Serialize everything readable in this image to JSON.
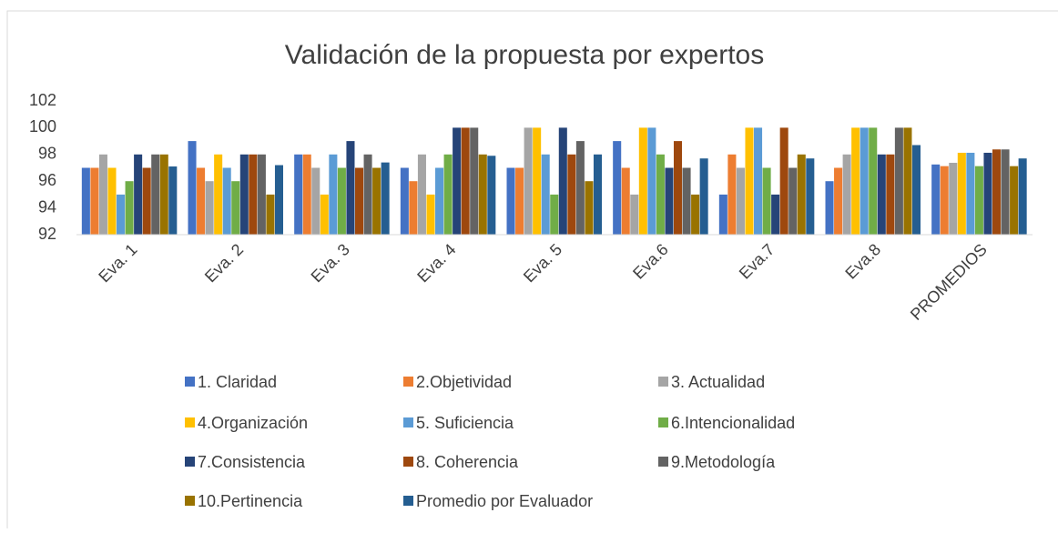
{
  "chart_data": {
    "type": "bar",
    "title": "Validación de la propuesta por expertos",
    "categories": [
      "Eva. 1",
      "Eva. 2",
      "Eva. 3",
      "Eva. 4",
      "Eva. 5",
      "Eva.6",
      "Eva.7",
      "Eva.8",
      "PROMEDIOS"
    ],
    "series": [
      {
        "name": "1. Claridad",
        "color": "#4472c4",
        "values": [
          97,
          99,
          98,
          97,
          97,
          99,
          95,
          96,
          97.25
        ]
      },
      {
        "name": "2.Objetividad",
        "color": "#ed7d31",
        "values": [
          97,
          97,
          98,
          96,
          97,
          97,
          98,
          97,
          97.125
        ]
      },
      {
        "name": "3. Actualidad",
        "color": "#a5a5a5",
        "values": [
          98,
          96,
          97,
          98,
          100,
          95,
          97,
          98,
          97.375
        ]
      },
      {
        "name": "4.Organización",
        "color": "#ffc000",
        "values": [
          97,
          98,
          95,
          95,
          100,
          100,
          100,
          100,
          98.125
        ]
      },
      {
        "name": "5. Suficiencia",
        "color": "#5b9bd5",
        "values": [
          95,
          97,
          98,
          97,
          98,
          100,
          100,
          100,
          98.125
        ]
      },
      {
        "name": "6.Intencionalidad",
        "color": "#70ad47",
        "values": [
          96,
          96,
          97,
          98,
          95,
          98,
          97,
          100,
          97.125
        ]
      },
      {
        "name": "7.Consistencia",
        "color": "#264478",
        "values": [
          98,
          98,
          99,
          100,
          100,
          97,
          95,
          98,
          98.125
        ]
      },
      {
        "name": "8. Coherencia",
        "color": "#9e480e",
        "values": [
          97,
          98,
          97,
          100,
          98,
          99,
          100,
          98,
          98.375
        ]
      },
      {
        "name": "9.Metodología",
        "color": "#636363",
        "values": [
          98,
          98,
          98,
          100,
          99,
          97,
          97,
          100,
          98.375
        ]
      },
      {
        "name": "10.Pertinencia",
        "color": "#997300",
        "values": [
          98,
          95,
          97,
          98,
          96,
          95,
          98,
          100,
          97.125
        ]
      },
      {
        "name": "Promedio por Evaluador",
        "color": "#255e91",
        "values": [
          97.1,
          97.2,
          97.4,
          97.9,
          98,
          97.7,
          97.7,
          98.7,
          97.7
        ]
      }
    ],
    "ylim": [
      92,
      102
    ],
    "yticks": [
      92,
      94,
      96,
      98,
      100,
      102
    ],
    "grid": false
  }
}
